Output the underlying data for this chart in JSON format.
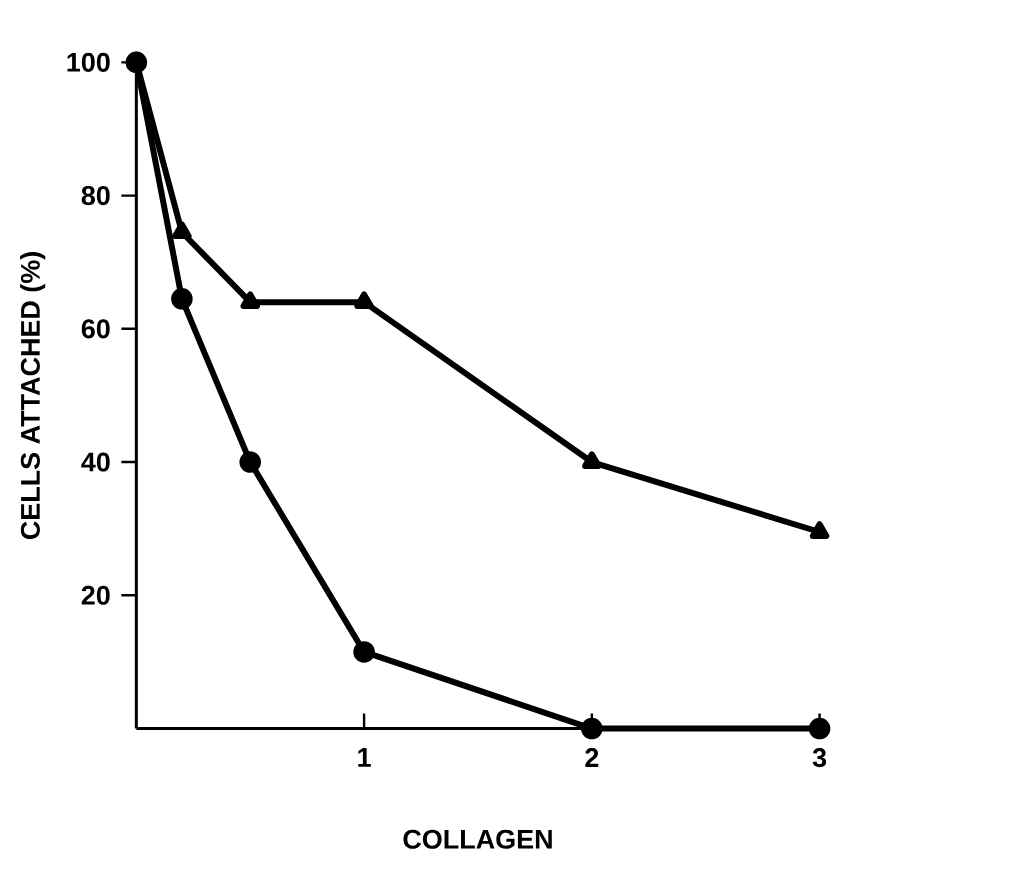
{
  "chart_data": {
    "type": "line",
    "xlabel": "COLLAGEN",
    "ylabel": "CELLS ATTACHED (%)",
    "xlim": [
      0,
      3
    ],
    "ylim": [
      0,
      100
    ],
    "xticks": [
      1,
      2,
      3
    ],
    "yticks": [
      20,
      40,
      60,
      80,
      100
    ],
    "grid": false,
    "series": [
      {
        "color": "#000000",
        "marker": "circle",
        "x": [
          0,
          0.2,
          0.5,
          1,
          2,
          3
        ],
        "values": [
          100,
          64.5,
          40,
          11.5,
          0,
          0
        ]
      },
      {
        "color": "#000000",
        "marker": "triangle",
        "x": [
          0,
          0.2,
          0.5,
          1,
          2,
          3
        ],
        "values": [
          100,
          74.5,
          64,
          64,
          40,
          29.5
        ]
      }
    ]
  }
}
